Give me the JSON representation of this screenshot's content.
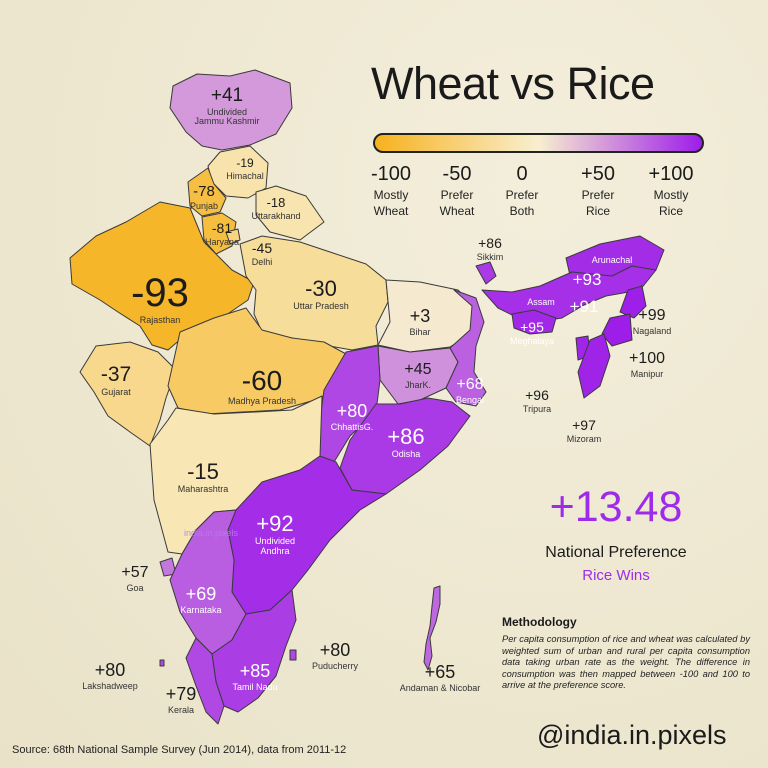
{
  "title": "Wheat vs Rice",
  "legend": {
    "colors": {
      "wheat": "#f6b21d",
      "both": "#f8efcf",
      "rice": "#9d1de9"
    },
    "ticks": [
      {
        "value": "-100",
        "caption1": "Mostly",
        "caption2": "Wheat"
      },
      {
        "value": "-50",
        "caption1": "Prefer",
        "caption2": "Wheat"
      },
      {
        "value": "0",
        "caption1": "Prefer",
        "caption2": "Both"
      },
      {
        "value": "+50",
        "caption1": "Prefer",
        "caption2": "Rice"
      },
      {
        "value": "+100",
        "caption1": "Mostly",
        "caption2": "Rice"
      }
    ]
  },
  "regions": [
    {
      "id": "jk",
      "name": "Undivided\nJammu Kashmir",
      "value": "+41",
      "score": 41
    },
    {
      "id": "hp",
      "name": "Himachal",
      "value": "-19",
      "score": -19
    },
    {
      "id": "pb",
      "name": "Punjab",
      "value": "-78",
      "score": -78
    },
    {
      "id": "hr",
      "name": "Haryana",
      "value": "-81",
      "score": -81
    },
    {
      "id": "uk",
      "name": "Uttarakhand",
      "value": "-18",
      "score": -18
    },
    {
      "id": "dl",
      "name": "Delhi",
      "value": "-45",
      "score": -45
    },
    {
      "id": "rj",
      "name": "Rajasthan",
      "value": "-93",
      "score": -93
    },
    {
      "id": "up",
      "name": "Uttar Pradesh",
      "value": "-30",
      "score": -30
    },
    {
      "id": "br",
      "name": "Bihar",
      "value": "+3",
      "score": 3
    },
    {
      "id": "sk",
      "name": "Sikkim",
      "value": "+86",
      "score": 86
    },
    {
      "id": "ar",
      "name": "Arunachal",
      "value": "+93",
      "score": 93
    },
    {
      "id": "as",
      "name": "Assam",
      "value": "+91",
      "score": 91
    },
    {
      "id": "ml",
      "name": "Meghalaya",
      "value": "+95",
      "score": 95
    },
    {
      "id": "nl",
      "name": "Nagaland",
      "value": "+99",
      "score": 99
    },
    {
      "id": "mn",
      "name": "Manipur",
      "value": "+100",
      "score": 100
    },
    {
      "id": "tr",
      "name": "Tripura",
      "value": "+96",
      "score": 96
    },
    {
      "id": "mz",
      "name": "Mizoram",
      "value": "+97",
      "score": 97
    },
    {
      "id": "gj",
      "name": "Gujarat",
      "value": "-37",
      "score": -37
    },
    {
      "id": "mp",
      "name": "Madhya Pradesh",
      "value": "-60",
      "score": -60
    },
    {
      "id": "jh",
      "name": "JharK.",
      "value": "+45",
      "score": 45
    },
    {
      "id": "wb",
      "name": "Bengal",
      "value": "+68",
      "score": 68
    },
    {
      "id": "cg",
      "name": "ChhattisG.",
      "value": "+80",
      "score": 80
    },
    {
      "id": "od",
      "name": "Odisha",
      "value": "+86",
      "score": 86
    },
    {
      "id": "mh",
      "name": "Maharashtra",
      "value": "-15",
      "score": -15
    },
    {
      "id": "ap",
      "name": "Undivided\nAndhra",
      "value": "+92",
      "score": 92
    },
    {
      "id": "ga",
      "name": "Goa",
      "value": "+57",
      "score": 57
    },
    {
      "id": "ka",
      "name": "Karnataka",
      "value": "+69",
      "score": 69
    },
    {
      "id": "py",
      "name": "Puducherry",
      "value": "+80",
      "score": 80
    },
    {
      "id": "tn",
      "name": "Tamil Nadu",
      "value": "+85",
      "score": 85
    },
    {
      "id": "kl",
      "name": "Kerala",
      "value": "+79",
      "score": 79
    },
    {
      "id": "ld",
      "name": "Lakshadweep",
      "value": "+80",
      "score": 80
    },
    {
      "id": "an",
      "name": "Andaman & Nicobar",
      "value": "+65",
      "score": 65
    }
  ],
  "national": {
    "value": "+13.48",
    "label": "National Preference",
    "verdict": "Rice Wins"
  },
  "methodology": {
    "heading": "Methodology",
    "text": "Per capita consumption of rice and wheat was calculated by weighted sum of urban and rural per capita consumption data taking urban rate as the weight. The difference in consumption was then mapped between -100 and 100 to arrive at the preference score."
  },
  "watermark": "india.in.pixels",
  "handle": "@india.in.pixels",
  "source": "Source: 68th National Sample Survey (Jun 2014), data from 2011-12"
}
